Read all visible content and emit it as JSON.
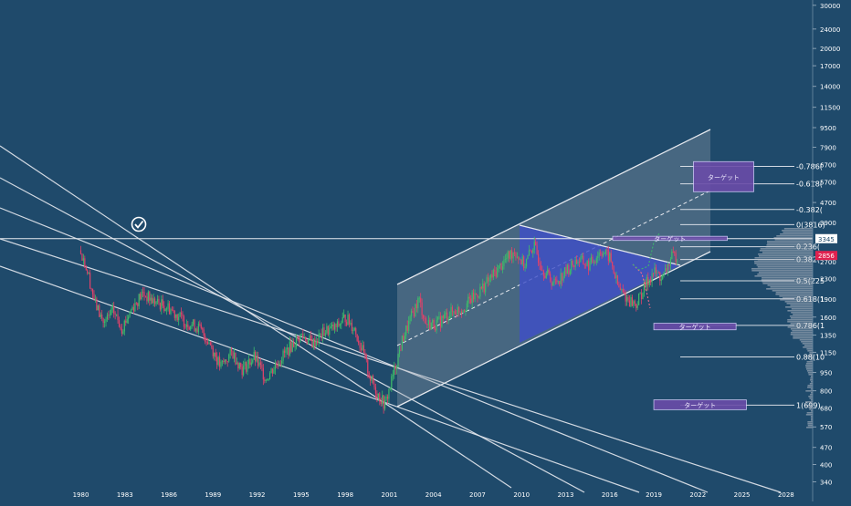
{
  "theme": {
    "background": "#1f4a6b",
    "channel_line": "#e6e9ef",
    "channel_fill": "#9aa4b2",
    "triangle_fill": "#3f4fc8",
    "target_fill": "#6a4ca8",
    "target_border": "#d8d0ff",
    "candle_up": "#3dbb6b",
    "candle_down": "#e0426a",
    "price_badge": "#e0214f",
    "axis_text": "#ffffff"
  },
  "chart_data": {
    "type": "candlestick",
    "x_ticks": [
      "1980",
      "1983",
      "1986",
      "1989",
      "1992",
      "1995",
      "1998",
      "2001",
      "2004",
      "2007",
      "2010",
      "2013",
      "2016",
      "2019",
      "2022",
      "2025",
      "2028"
    ],
    "y_ticks": [
      30000,
      24000,
      20000,
      17000,
      14000,
      11500,
      9500,
      7900,
      6700,
      5700,
      4700,
      3900,
      3345,
      2856,
      2700,
      2300,
      1900,
      1600,
      1350,
      1150,
      950,
      800,
      680,
      570,
      470,
      400,
      340
    ],
    "y_scale": "log",
    "ylim": [
      330,
      31000
    ],
    "xlim": [
      1974.5,
      2029.5
    ],
    "series_path": [
      [
        1980.0,
        3000
      ],
      [
        1980.5,
        2400
      ],
      [
        1981.0,
        1800
      ],
      [
        1981.6,
        1500
      ],
      [
        1982.2,
        1700
      ],
      [
        1982.8,
        1450
      ],
      [
        1983.5,
        1750
      ],
      [
        1984.2,
        2000
      ],
      [
        1985.0,
        1850
      ],
      [
        1986.0,
        1750
      ],
      [
        1987.0,
        1550
      ],
      [
        1988.0,
        1450
      ],
      [
        1988.8,
        1250
      ],
      [
        1989.5,
        1000
      ],
      [
        1990.3,
        1150
      ],
      [
        1991.0,
        980
      ],
      [
        1991.8,
        1100
      ],
      [
        1992.6,
        900
      ],
      [
        1993.4,
        1050
      ],
      [
        1994.2,
        1200
      ],
      [
        1995.0,
        1350
      ],
      [
        1995.8,
        1250
      ],
      [
        1996.6,
        1400
      ],
      [
        1997.4,
        1450
      ],
      [
        1998.0,
        1600
      ],
      [
        1998.6,
        1450
      ],
      [
        1999.2,
        1150
      ],
      [
        1999.7,
        900
      ],
      [
        2000.2,
        780
      ],
      [
        2000.7,
        700
      ],
      [
        2001.3,
        950
      ],
      [
        2001.9,
        1300
      ],
      [
        2002.5,
        1600
      ],
      [
        2003.0,
        1900
      ],
      [
        2003.5,
        1500
      ],
      [
        2004.2,
        1500
      ],
      [
        2005.0,
        1650
      ],
      [
        2006.0,
        1750
      ],
      [
        2007.0,
        2000
      ],
      [
        2008.0,
        2350
      ],
      [
        2008.8,
        2700
      ],
      [
        2009.5,
        3000
      ],
      [
        2010.2,
        2600
      ],
      [
        2010.8,
        3150
      ],
      [
        2011.5,
        2500
      ],
      [
        2012.2,
        2200
      ],
      [
        2013.0,
        2450
      ],
      [
        2013.8,
        2750
      ],
      [
        2014.6,
        2600
      ],
      [
        2015.4,
        3000
      ],
      [
        2016.0,
        2800
      ],
      [
        2016.6,
        2100
      ],
      [
        2017.2,
        1900
      ],
      [
        2017.8,
        1800
      ],
      [
        2018.4,
        2150
      ],
      [
        2019.0,
        2450
      ],
      [
        2019.6,
        2300
      ],
      [
        2020.2,
        2800
      ],
      [
        2020.6,
        2856
      ]
    ],
    "current_price": 2856,
    "horizontal_level": 3345,
    "fib_levels": [
      {
        "label": "-0.786(",
        "value": 6600
      },
      {
        "label": "-0.618(",
        "value": 5600
      },
      {
        "label": "-0.382(",
        "value": 4400
      },
      {
        "label": "0(3816)",
        "value": 3816
      },
      {
        "label": "0.236(",
        "value": 3100
      },
      {
        "label": "0.382(",
        "value": 2750
      },
      {
        "label": "0.5(225",
        "value": 2250
      },
      {
        "label": "0.618(1",
        "value": 1900
      },
      {
        "label": "0.786(1",
        "value": 1480
      },
      {
        "label": "0.88(10",
        "value": 1100
      },
      {
        "label": "1(699)",
        "value": 699
      }
    ],
    "targets": [
      {
        "label": "ターゲット",
        "x1": 2021.7,
        "x2": 2025.8,
        "y_high": 6900,
        "y_low": 5200
      },
      {
        "label": "ターゲット",
        "x1": 2016.2,
        "x2": 2024.0,
        "y_high": 3420,
        "y_low": 3290
      },
      {
        "label": "ターゲット",
        "x1": 2019.0,
        "x2": 2024.6,
        "y_high": 1510,
        "y_low": 1420
      },
      {
        "label": "ターゲット",
        "x1": 2019.0,
        "x2": 2025.3,
        "y_high": 735,
        "y_low": 670
      }
    ]
  }
}
